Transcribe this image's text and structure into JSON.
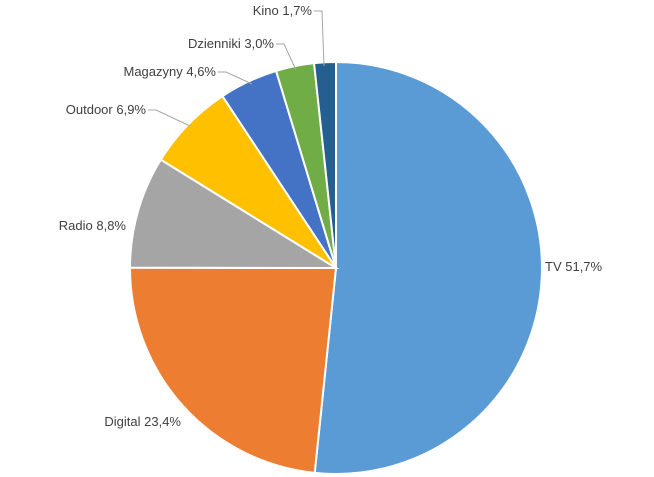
{
  "chart_data": {
    "type": "pie",
    "title": "",
    "slices": [
      {
        "name": "TV",
        "value": 51.7,
        "value_label": "51,7%",
        "color": "#5b9bd5"
      },
      {
        "name": "Digital",
        "value": 23.4,
        "value_label": "23,4%",
        "color": "#ed7d31"
      },
      {
        "name": "Radio",
        "value": 8.8,
        "value_label": "8,8%",
        "color": "#a5a5a5"
      },
      {
        "name": "Outdoor",
        "value": 6.9,
        "value_label": "6,9%",
        "color": "#ffc000"
      },
      {
        "name": "Magazyny",
        "value": 4.6,
        "value_label": "4,6%",
        "color": "#4472c4"
      },
      {
        "name": "Dzienniki",
        "value": 3.0,
        "value_label": "3,0%",
        "color": "#70ad47"
      },
      {
        "name": "Kino",
        "value": 1.7,
        "value_label": "1,7%",
        "color": "#255e91"
      }
    ],
    "start_angle": "12 o'clock",
    "direction": "clockwise",
    "labels": "outside with leader lines",
    "legend": "none"
  }
}
